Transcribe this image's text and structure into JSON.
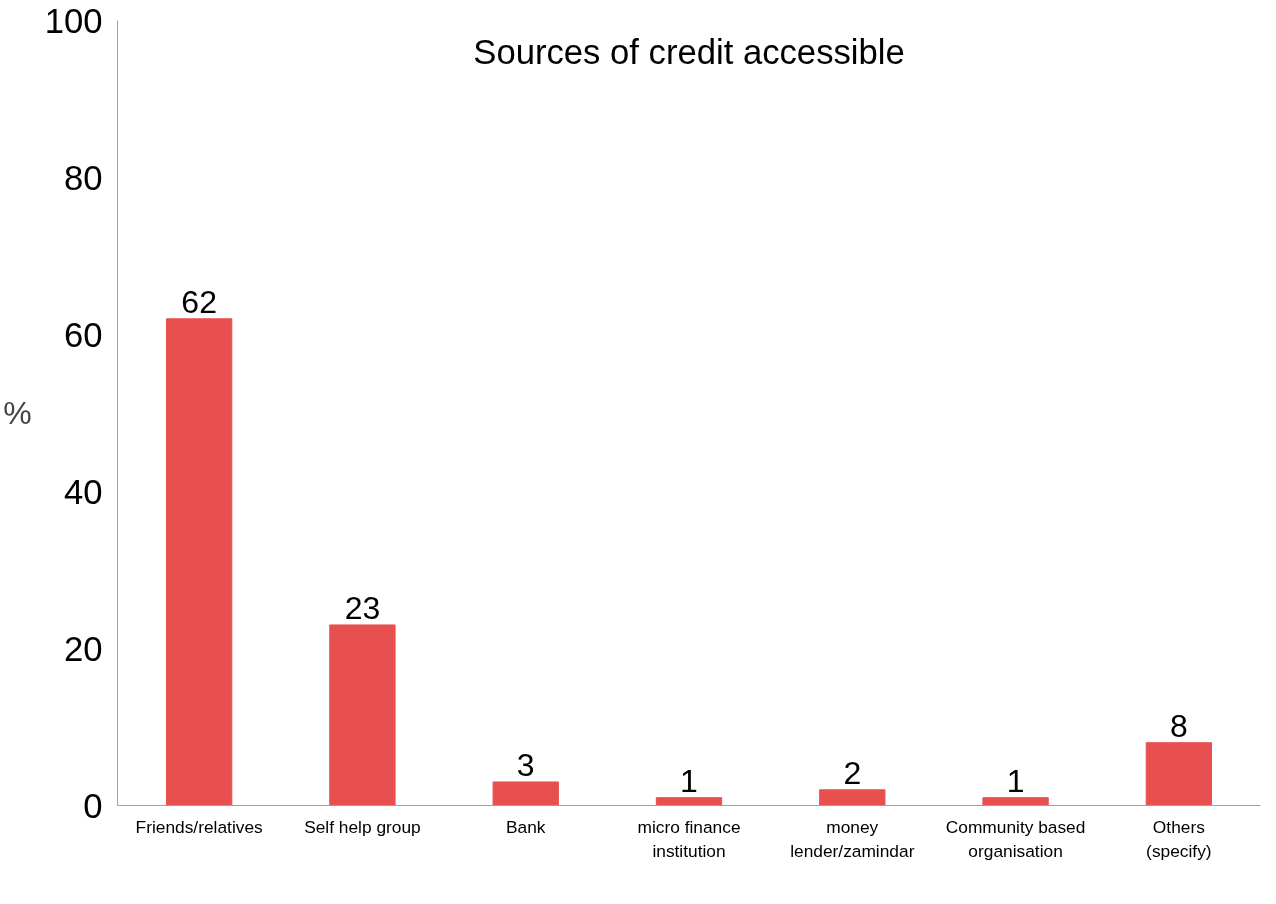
{
  "chart_data": {
    "type": "bar",
    "title": "Sources of credit accessible",
    "ylabel": "%",
    "categories": [
      "Friends/relatives",
      "Self help group",
      "Bank",
      "micro finance institution",
      "money lender/zamindar",
      "Community based organisation",
      "Others (specify)"
    ],
    "values": [
      62,
      23,
      3,
      1,
      2,
      1,
      8
    ],
    "color": "#e85050",
    "ylim": [
      0,
      100
    ],
    "yticks": [
      0,
      20,
      40,
      60,
      80,
      100
    ],
    "grid": false,
    "data_labels": true
  }
}
